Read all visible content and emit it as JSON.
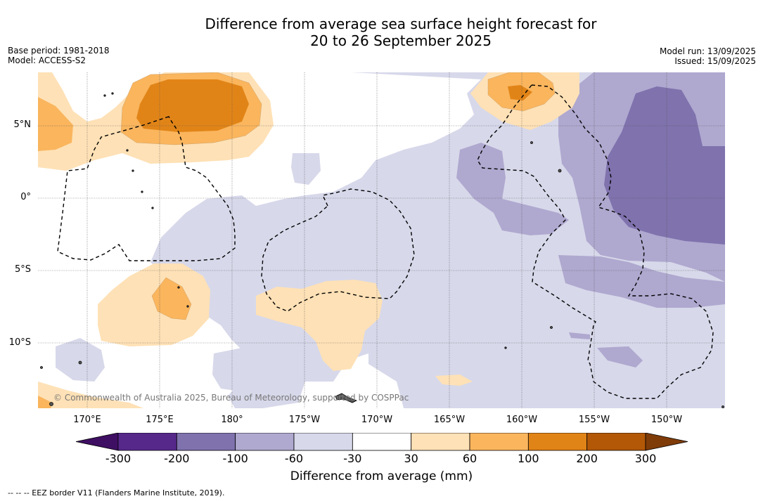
{
  "header": {
    "title_line1": "Difference from average sea surface height forecast for",
    "title_line2": "20 to 26 September 2025",
    "base_period": "Base period: 1981-2018",
    "model": "Model: ACCESS-S2",
    "model_run": "Model run: 13/09/2025",
    "issued": "Issued: 15/09/2025"
  },
  "map": {
    "lat_labels": [
      "5°N",
      "0°",
      "5°S",
      "10°S"
    ],
    "lon_labels": [
      "170°E",
      "175°E",
      "180°",
      "175°W",
      "170°W",
      "165°W",
      "160°W",
      "155°W",
      "150°W"
    ],
    "copyright": "© Commonwealth of Australia 2025, Bureau of Meteorology, supported by COSPPac"
  },
  "legend": {
    "ticks": [
      "-300",
      "-200",
      "-100",
      "-60",
      "-30",
      "30",
      "60",
      "100",
      "200",
      "300"
    ],
    "colors": [
      "#3f0f63",
      "#56288a",
      "#7f72ad",
      "#afa8cf",
      "#d7d8ea",
      "#ffffff",
      "#fee1b6",
      "#fab55d",
      "#e18417",
      "#b35807",
      "#7f3b08"
    ],
    "label": "Difference from average (mm)"
  },
  "footnote": "--  --  -- EEZ border V11 (Flanders Marine Institute, 2019)."
}
